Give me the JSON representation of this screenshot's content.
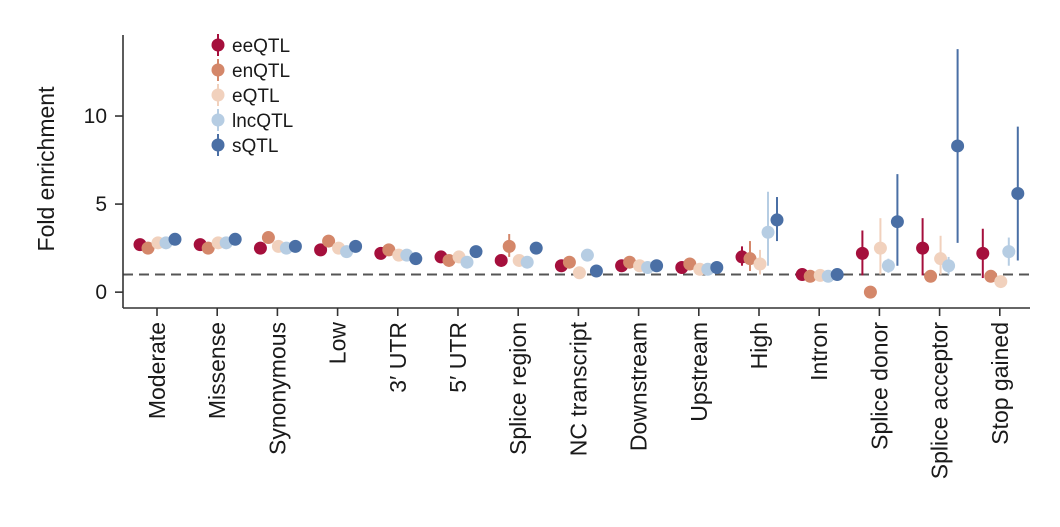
{
  "chart_data": {
    "type": "scatter",
    "ylabel": "Fold enrichment",
    "ylim": [
      -0.9,
      14.6
    ],
    "yticks": [
      0,
      5,
      10
    ],
    "reference_line": 1,
    "legend_position": "top-left",
    "categories": [
      "Moderate",
      "Missense",
      "Synonymous",
      "Low",
      "3′ UTR",
      "5′ UTR",
      "Splice region",
      "NC transcript",
      "Downstream",
      "Upstream",
      "High",
      "Intron",
      "Splice donor",
      "Splice acceptor",
      "Stop gained"
    ],
    "series": [
      {
        "name": "eeQTL",
        "color": "#a50f3c",
        "values": [
          2.7,
          2.7,
          2.5,
          2.4,
          2.2,
          2.0,
          1.8,
          1.5,
          1.5,
          1.4,
          2.0,
          1.0,
          2.2,
          2.5,
          2.2
        ],
        "ci_low": [
          2.55,
          2.55,
          2.3,
          2.2,
          2.0,
          1.8,
          1.6,
          1.3,
          1.35,
          1.2,
          1.5,
          0.9,
          0.95,
          0.95,
          0.8
        ],
        "ci_high": [
          2.85,
          2.85,
          2.7,
          2.6,
          2.4,
          2.2,
          2.0,
          1.7,
          1.65,
          1.6,
          2.6,
          1.1,
          3.5,
          4.2,
          3.6
        ]
      },
      {
        "name": "enQTL",
        "color": "#d4876a",
        "values": [
          2.5,
          2.5,
          3.1,
          2.9,
          2.4,
          1.8,
          2.6,
          1.7,
          1.7,
          1.6,
          1.9,
          0.9,
          0.0,
          0.9,
          0.9
        ],
        "ci_low": [
          2.25,
          2.2,
          2.8,
          2.7,
          2.2,
          1.6,
          2.0,
          1.5,
          1.5,
          1.4,
          1.2,
          0.8,
          0.0,
          0.8,
          0.8
        ],
        "ci_high": [
          2.75,
          2.8,
          3.4,
          3.1,
          2.6,
          2.0,
          3.3,
          1.9,
          1.9,
          1.8,
          2.9,
          1.0,
          0.0,
          1.0,
          1.0
        ]
      },
      {
        "name": "eQTL",
        "color": "#f1d1bd",
        "values": [
          2.8,
          2.8,
          2.6,
          2.5,
          2.1,
          2.0,
          1.8,
          1.1,
          1.5,
          1.3,
          1.6,
          0.95,
          2.5,
          1.9,
          0.6
        ],
        "ci_low": [
          2.65,
          2.65,
          2.4,
          2.35,
          1.95,
          1.8,
          1.6,
          0.9,
          1.35,
          1.1,
          1.0,
          0.8,
          1.0,
          1.0,
          0.4
        ],
        "ci_high": [
          2.95,
          2.95,
          2.8,
          2.65,
          2.25,
          2.2,
          2.0,
          1.3,
          1.65,
          1.5,
          2.4,
          1.1,
          4.2,
          3.2,
          0.9
        ]
      },
      {
        "name": "lncQTL",
        "color": "#b6cde3",
        "values": [
          2.8,
          2.8,
          2.5,
          2.3,
          2.1,
          1.7,
          1.7,
          2.1,
          1.4,
          1.3,
          3.4,
          0.9,
          1.5,
          1.5,
          2.3
        ],
        "ci_low": [
          2.65,
          2.65,
          2.35,
          2.15,
          1.95,
          1.5,
          1.5,
          1.9,
          1.25,
          1.1,
          1.5,
          0.8,
          1.1,
          1.0,
          1.5
        ],
        "ci_high": [
          2.95,
          2.95,
          2.65,
          2.45,
          2.25,
          1.9,
          1.9,
          2.3,
          1.55,
          1.5,
          5.7,
          1.0,
          1.9,
          2.0,
          3.1
        ]
      },
      {
        "name": "sQTL",
        "color": "#4a6fa5",
        "values": [
          3.0,
          3.0,
          2.6,
          2.6,
          1.9,
          2.3,
          2.5,
          1.2,
          1.5,
          1.4,
          4.1,
          1.0,
          4.0,
          8.3,
          5.6
        ],
        "ci_low": [
          2.85,
          2.85,
          2.45,
          2.45,
          1.75,
          2.1,
          2.3,
          1.05,
          1.35,
          1.25,
          2.9,
          0.9,
          1.5,
          2.8,
          1.8
        ],
        "ci_high": [
          3.15,
          3.15,
          2.75,
          2.75,
          2.05,
          2.5,
          2.7,
          1.35,
          1.65,
          1.55,
          5.4,
          1.1,
          6.7,
          13.8,
          9.4
        ]
      }
    ]
  }
}
